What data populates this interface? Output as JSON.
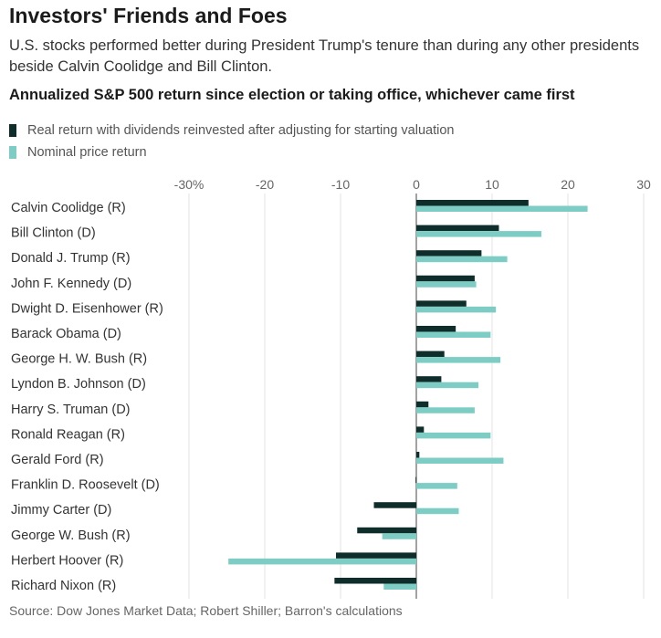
{
  "title": "Investors' Friends and Foes",
  "subtitle": "U.S. stocks performed better during President Trump's tenure than during any other presidents beside Calvin Coolidge and Bill Clinton.",
  "source": "Source: Dow Jones Market Data; Robert Shiller; Barron's calculations",
  "colors": {
    "real": "#0f2d2a",
    "nominal": "#7dcdc4",
    "grid": "#e3e3e3",
    "zero": "#444444"
  },
  "chart_data": {
    "type": "bar",
    "orientation": "horizontal",
    "title": "Annualized S&P 500 return since election or taking office, whichever came first",
    "xlim": [
      -30,
      30
    ],
    "xticks": [
      -30,
      -20,
      -10,
      0,
      10,
      20,
      30
    ],
    "xtick_labels": [
      "-30%",
      "-20",
      "-10",
      "0",
      "10",
      "20",
      "30"
    ],
    "legend_position": "top-left",
    "grid": true,
    "categories": [
      "Calvin Coolidge (R)",
      "Bill Clinton (D)",
      "Donald J. Trump (R)",
      "John F. Kennedy (D)",
      "Dwight D. Eisenhower (R)",
      "Barack Obama (D)",
      "George H. W. Bush (R)",
      "Lyndon B. Johnson (D)",
      "Harry S. Truman (D)",
      "Ronald Reagan (R)",
      "Gerald Ford (R)",
      "Franklin D. Roosevelt (D)",
      "Jimmy Carter (D)",
      "George W. Bush (R)",
      "Herbert Hoover (R)",
      "Richard Nixon (R)"
    ],
    "series": [
      {
        "name": "Real return with dividends reinvested after adjusting for starting valuation",
        "values": [
          14.8,
          10.9,
          8.6,
          7.7,
          6.6,
          5.2,
          3.7,
          3.3,
          1.6,
          1.0,
          0.4,
          -0.1,
          -5.6,
          -7.8,
          -10.6,
          -10.8
        ]
      },
      {
        "name": "Nominal price return",
        "values": [
          22.6,
          16.5,
          12.0,
          7.9,
          10.5,
          9.8,
          11.1,
          8.2,
          7.7,
          9.8,
          11.5,
          5.4,
          5.6,
          -4.5,
          -24.8,
          -4.3
        ]
      }
    ]
  }
}
